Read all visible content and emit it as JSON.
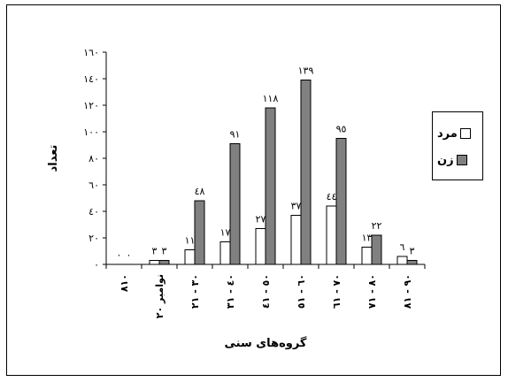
{
  "chart_data": {
    "type": "bar",
    "title": "",
    "xlabel": "گروه‌های سنی",
    "ylabel": "تعداد",
    "ylim": [
      0,
      160
    ],
    "yticks": [
      0,
      20,
      40,
      60,
      80,
      100,
      120,
      140,
      160
    ],
    "ytick_labels": [
      "٠",
      "٢٠",
      "٤٠",
      "٦٠",
      "٨٠",
      "١٠٠",
      "١٢٠",
      "١٤٠",
      "١٦٠"
    ],
    "categories": [
      "٨١٠",
      "نوامبر ٢٠",
      "٣٠ - ٢١",
      "٤٠ - ٣١",
      "٥٠ - ٤١",
      "٦٠ - ٥١",
      "٧٠ - ٦١",
      "٨٠ - ٧١",
      "٩٠ - ٨١"
    ],
    "series": [
      {
        "name": "مرد",
        "color": "#ffffff",
        "values": [
          0,
          3,
          11,
          17,
          27,
          37,
          44,
          13,
          6
        ],
        "labels": [
          "٠",
          "٣",
          "١١",
          "١٧",
          "٢٧",
          "٣٧",
          "٤٤",
          "١٣",
          "٦"
        ]
      },
      {
        "name": "زن",
        "color": "#808080",
        "values": [
          0,
          3,
          48,
          91,
          118,
          139,
          95,
          22,
          3
        ],
        "labels": [
          "٠",
          "٣",
          "٤٨",
          "٩١",
          "١١٨",
          "١٣٩",
          "٩٥",
          "٢٢",
          "٣"
        ]
      }
    ],
    "legend_position": "right",
    "grid": false
  }
}
